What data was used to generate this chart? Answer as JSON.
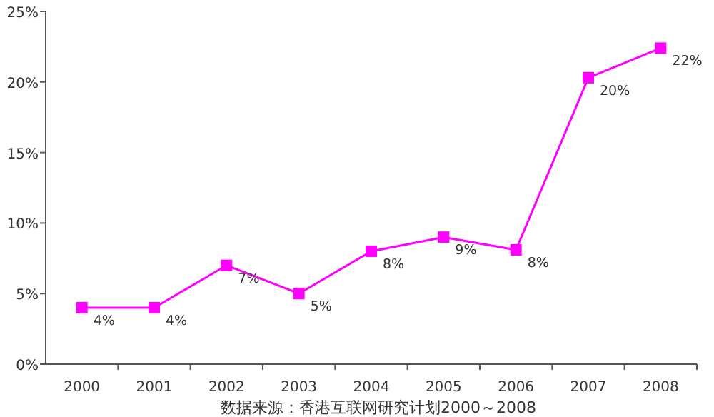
{
  "chart_data": {
    "type": "line",
    "categories": [
      "2000",
      "2001",
      "2002",
      "2003",
      "2004",
      "2005",
      "2006",
      "2007",
      "2008"
    ],
    "series": [
      {
        "color": "#ff00ff",
        "values": [
          4,
          4,
          7,
          5,
          8,
          9,
          8.1,
          20.3,
          22.4
        ],
        "value_labels": [
          "4%",
          "4%",
          "7%",
          "5%",
          "8%",
          "9%",
          "8%",
          "20%",
          "22%"
        ]
      }
    ],
    "ylim": [
      0,
      25
    ],
    "yticks": [
      {
        "value": 0,
        "label": "0%"
      },
      {
        "value": 5,
        "label": "5%"
      },
      {
        "value": 10,
        "label": "10%"
      },
      {
        "value": 15,
        "label": "15%"
      },
      {
        "value": 20,
        "label": "20%"
      },
      {
        "value": 25,
        "label": "25%"
      }
    ],
    "marker": "square",
    "line_style": "solid",
    "grid": false,
    "annotations": [
      "数据来源：香港互联网研究计划2000～2008"
    ]
  }
}
